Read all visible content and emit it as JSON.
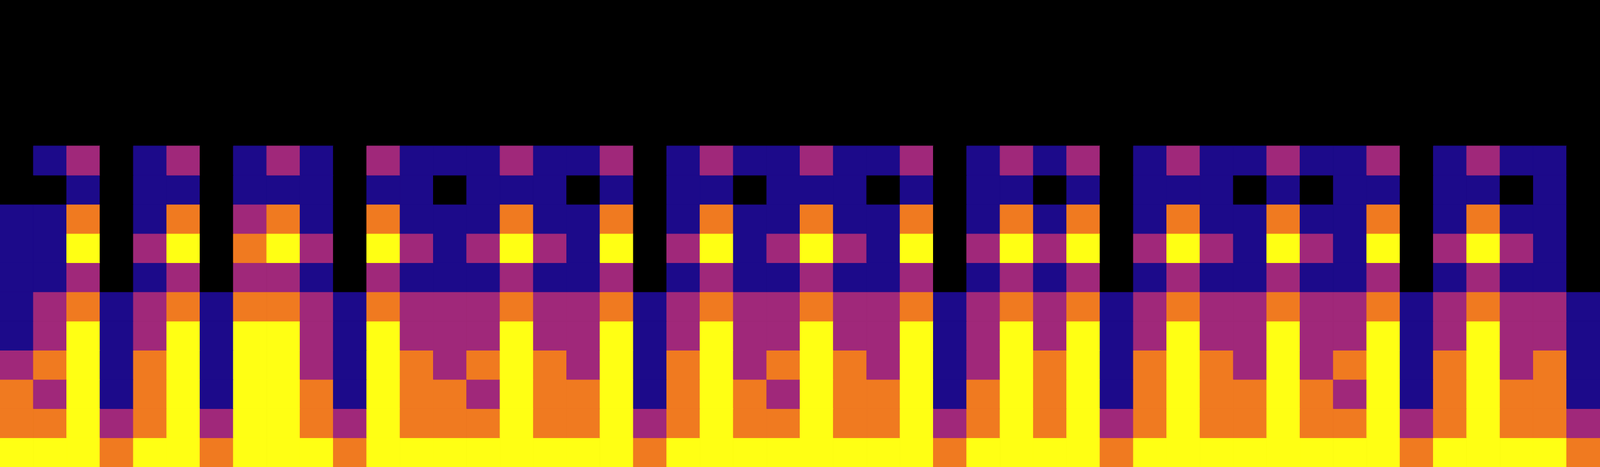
{
  "chart_data": {
    "type": "heatmap",
    "tick_labels": false,
    "xlim": [
      0,
      48
    ],
    "ylim": [
      0,
      16
    ],
    "zlim": [
      0,
      4
    ],
    "x": [
      0,
      1,
      2,
      3,
      4,
      5,
      6,
      7,
      8,
      9,
      10,
      11,
      12,
      13,
      14,
      15,
      16,
      17,
      18,
      19,
      20,
      21,
      22,
      23,
      24,
      25,
      26,
      27,
      28,
      29,
      30,
      31,
      32,
      33,
      34,
      35,
      36,
      37,
      38,
      39,
      40,
      41,
      42,
      43,
      44,
      45,
      46,
      47
    ],
    "y": [
      0,
      1,
      2,
      3,
      4,
      5,
      6,
      7,
      8,
      9,
      10
    ],
    "cells": [
      [
        4,
        4,
        4,
        3,
        4,
        4,
        3,
        4,
        4,
        4,
        3,
        4,
        4,
        4,
        4,
        4,
        4,
        4,
        4,
        3,
        4,
        4,
        4,
        4,
        4,
        4,
        4,
        4,
        3,
        4,
        4,
        4,
        4,
        3,
        4,
        4,
        4,
        4,
        4,
        4,
        4,
        4,
        3,
        4,
        4,
        4,
        4,
        3
      ],
      [
        3,
        3,
        4,
        2,
        3,
        4,
        2,
        4,
        4,
        3,
        2,
        4,
        3,
        3,
        3,
        4,
        3,
        3,
        4,
        2,
        3,
        4,
        3,
        3,
        4,
        3,
        3,
        4,
        2,
        3,
        4,
        3,
        4,
        2,
        3,
        4,
        3,
        3,
        4,
        3,
        3,
        4,
        2,
        3,
        4,
        3,
        3,
        2
      ],
      [
        3,
        2,
        4,
        1,
        3,
        4,
        1,
        4,
        4,
        3,
        1,
        4,
        3,
        3,
        2,
        4,
        3,
        3,
        4,
        1,
        3,
        4,
        3,
        2,
        4,
        3,
        3,
        4,
        1,
        3,
        4,
        3,
        4,
        1,
        3,
        4,
        3,
        3,
        4,
        3,
        2,
        4,
        1,
        3,
        4,
        3,
        3,
        1
      ],
      [
        2,
        3,
        4,
        1,
        3,
        4,
        1,
        4,
        4,
        2,
        1,
        4,
        3,
        2,
        3,
        4,
        3,
        2,
        4,
        1,
        3,
        4,
        2,
        3,
        4,
        3,
        2,
        4,
        1,
        2,
        4,
        3,
        4,
        1,
        3,
        4,
        3,
        2,
        4,
        2,
        3,
        4,
        1,
        3,
        4,
        2,
        3,
        1
      ],
      [
        1,
        2,
        4,
        1,
        2,
        4,
        1,
        4,
        4,
        2,
        1,
        4,
        2,
        2,
        2,
        4,
        2,
        2,
        4,
        1,
        2,
        4,
        2,
        2,
        4,
        2,
        2,
        4,
        1,
        2,
        4,
        2,
        4,
        1,
        2,
        4,
        2,
        2,
        4,
        2,
        2,
        4,
        1,
        2,
        4,
        2,
        2,
        1
      ],
      [
        1,
        2,
        3,
        1,
        2,
        3,
        1,
        3,
        3,
        2,
        1,
        3,
        2,
        2,
        2,
        3,
        2,
        2,
        3,
        1,
        2,
        3,
        2,
        2,
        3,
        2,
        2,
        3,
        1,
        2,
        3,
        2,
        3,
        1,
        2,
        3,
        2,
        2,
        3,
        2,
        2,
        3,
        1,
        2,
        3,
        2,
        2,
        1
      ],
      [
        1,
        1,
        2,
        0,
        1,
        2,
        0,
        2,
        2,
        1,
        0,
        2,
        1,
        1,
        1,
        2,
        1,
        1,
        2,
        0,
        1,
        2,
        1,
        1,
        2,
        1,
        1,
        2,
        0,
        1,
        2,
        1,
        2,
        0,
        1,
        2,
        1,
        1,
        2,
        1,
        1,
        2,
        0,
        1,
        2,
        1,
        1,
        0
      ],
      [
        1,
        1,
        4,
        0,
        2,
        4,
        0,
        3,
        4,
        2,
        0,
        4,
        2,
        1,
        2,
        4,
        2,
        1,
        4,
        0,
        2,
        4,
        1,
        2,
        4,
        2,
        1,
        4,
        0,
        2,
        4,
        2,
        4,
        0,
        2,
        4,
        2,
        1,
        4,
        2,
        1,
        4,
        0,
        2,
        4,
        2,
        1,
        0
      ],
      [
        1,
        1,
        3,
        0,
        1,
        3,
        0,
        2,
        3,
        1,
        0,
        3,
        1,
        1,
        1,
        3,
        1,
        1,
        3,
        0,
        1,
        3,
        1,
        1,
        3,
        1,
        1,
        3,
        0,
        1,
        3,
        1,
        3,
        0,
        1,
        3,
        1,
        1,
        3,
        1,
        1,
        3,
        0,
        1,
        3,
        1,
        1,
        0
      ],
      [
        0,
        0,
        1,
        0,
        1,
        1,
        0,
        1,
        1,
        1,
        0,
        1,
        1,
        0,
        1,
        1,
        1,
        0,
        1,
        0,
        1,
        1,
        0,
        1,
        1,
        1,
        0,
        1,
        0,
        1,
        1,
        0,
        1,
        0,
        1,
        1,
        1,
        0,
        1,
        0,
        1,
        1,
        0,
        1,
        1,
        0,
        1,
        0
      ],
      [
        0,
        1,
        2,
        0,
        1,
        2,
        0,
        1,
        2,
        1,
        0,
        2,
        1,
        1,
        1,
        2,
        1,
        1,
        2,
        0,
        1,
        2,
        1,
        1,
        2,
        1,
        1,
        2,
        0,
        1,
        2,
        1,
        2,
        0,
        1,
        2,
        1,
        1,
        2,
        1,
        1,
        2,
        0,
        1,
        2,
        1,
        1,
        0
      ]
    ]
  }
}
